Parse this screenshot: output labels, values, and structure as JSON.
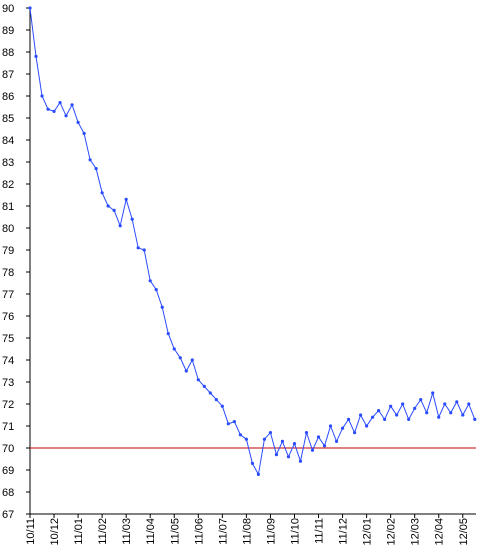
{
  "chart_data": {
    "type": "line",
    "x": [
      0,
      0.25,
      0.5,
      0.75,
      1,
      1.25,
      1.5,
      1.75,
      2,
      2.25,
      2.5,
      2.75,
      3,
      3.25,
      3.5,
      3.75,
      4,
      4.25,
      4.5,
      4.75,
      5,
      5.25,
      5.5,
      5.75,
      6,
      6.25,
      6.5,
      6.75,
      7,
      7.25,
      7.5,
      7.75,
      8,
      8.25,
      8.5,
      8.75,
      9,
      9.25,
      9.5,
      9.75,
      10,
      10.25,
      10.5,
      10.75,
      11,
      11.25,
      11.5,
      11.75,
      12,
      12.25,
      12.5,
      12.75,
      13,
      13.25,
      13.5,
      13.75,
      14,
      14.25,
      14.5,
      14.75,
      15,
      15.25,
      15.5,
      15.75,
      16,
      16.25,
      16.5,
      16.75,
      17,
      17.25,
      17.5,
      17.75,
      18,
      18.25,
      18.5
    ],
    "series": [
      {
        "color": "#2a4bff",
        "values": [
          90,
          87.8,
          86,
          85.4,
          85.3,
          85.7,
          85.1,
          85.6,
          84.8,
          84.3,
          83.1,
          82.7,
          81.6,
          81,
          80.8,
          80.1,
          81.3,
          80.4,
          79.1,
          79,
          77.6,
          77.2,
          76.4,
          75.2,
          74.5,
          74.1,
          73.5,
          74,
          73.1,
          72.8,
          72.5,
          72.2,
          71.9,
          71.1,
          71.2,
          70.6,
          70.4,
          69.3,
          68.8,
          70.4,
          70.7,
          69.7,
          70.3,
          69.6,
          70.2,
          69.4,
          70.7,
          69.9,
          70.5,
          70.1,
          71,
          70.3,
          70.9,
          71.3,
          70.7,
          71.5,
          71,
          71.4,
          71.7,
          71.3,
          71.9,
          71.5,
          72,
          71.3,
          71.8,
          72.2,
          71.6,
          72.5,
          71.4,
          72,
          71.6,
          72.1,
          71.5,
          72,
          71.3
        ]
      }
    ],
    "xlim": [
      0,
      18.55
    ],
    "xticks": [
      {
        "value": 0,
        "label": "10/11"
      },
      {
        "value": 1,
        "label": "10/12"
      },
      {
        "value": 2,
        "label": "11/01"
      },
      {
        "value": 3,
        "label": "11/02"
      },
      {
        "value": 4,
        "label": "11/03"
      },
      {
        "value": 5,
        "label": "11/04"
      },
      {
        "value": 6,
        "label": "11/05"
      },
      {
        "value": 7,
        "label": "11/06"
      },
      {
        "value": 8,
        "label": "11/07"
      },
      {
        "value": 9,
        "label": "11/08"
      },
      {
        "value": 10,
        "label": "11/09"
      },
      {
        "value": 11,
        "label": "11/10"
      },
      {
        "value": 12,
        "label": "11/11"
      },
      {
        "value": 13,
        "label": "11/12"
      },
      {
        "value": 14,
        "label": "12/01"
      },
      {
        "value": 15,
        "label": "12/02"
      },
      {
        "value": 16,
        "label": "12/03"
      },
      {
        "value": 17,
        "label": "12/04"
      },
      {
        "value": 18,
        "label": "12/05"
      }
    ],
    "ylim": [
      67,
      90
    ],
    "yticks": [
      67,
      68,
      69,
      70,
      71,
      72,
      73,
      74,
      75,
      76,
      77,
      78,
      79,
      80,
      81,
      82,
      83,
      84,
      85,
      86,
      87,
      88,
      89,
      90
    ],
    "reference_line": {
      "value": 70,
      "color": "#c00000"
    }
  }
}
